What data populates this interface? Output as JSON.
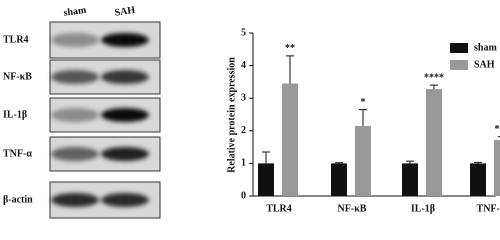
{
  "blot": {
    "columns": [
      "sham",
      "SAH"
    ],
    "rows": [
      "TLR4",
      "NF-κB",
      "IL-1β",
      "TNF-α",
      "β-actin"
    ]
  },
  "chart_data": {
    "type": "bar",
    "ylabel": "Relative protein expression",
    "categories": [
      "TLR4",
      "NF-κB",
      "IL-1β",
      "TNF-α"
    ],
    "series": [
      {
        "name": "sham",
        "color": "#111111",
        "values": [
          1.0,
          1.0,
          1.0,
          1.0
        ],
        "errors": [
          0.35,
          0.02,
          0.07,
          0.03
        ]
      },
      {
        "name": "SAH",
        "color": "#999999",
        "values": [
          3.45,
          2.15,
          3.28,
          1.72
        ],
        "errors": [
          0.85,
          0.5,
          0.12,
          0.1
        ]
      }
    ],
    "annotations": [
      "**",
      "*",
      "****",
      "***"
    ],
    "ylim": [
      0,
      5
    ],
    "yticks": [
      0,
      1,
      2,
      3,
      4,
      5
    ],
    "grid": false,
    "legend": "upper right"
  }
}
